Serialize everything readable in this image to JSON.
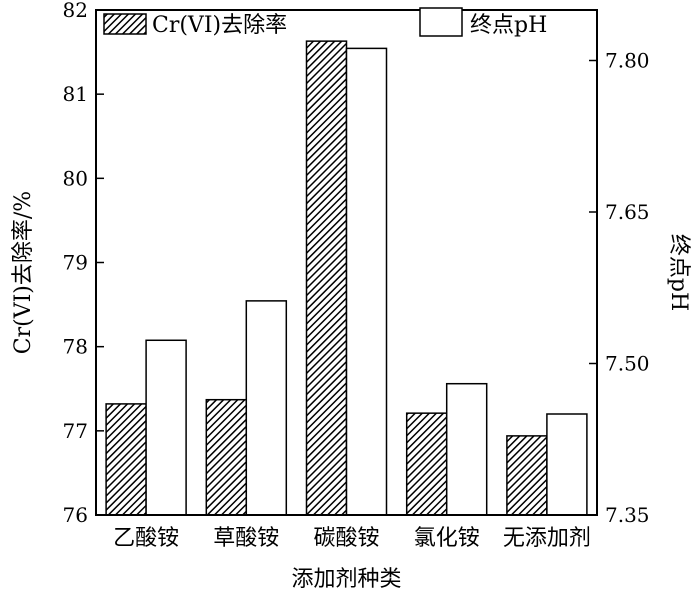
{
  "chart_data": {
    "type": "bar",
    "xlabel": "添加剂种类",
    "categories": [
      "乙酸铵",
      "草酸铵",
      "碳酸铵",
      "氯化铵",
      "无添加剂"
    ],
    "left_axis": {
      "label": "Cr(VI)去除率/%",
      "ylim": [
        76,
        82
      ],
      "ticks": [
        "76",
        "77",
        "78",
        "79",
        "80",
        "81",
        "82"
      ]
    },
    "right_axis": {
      "label": "终点pH",
      "ylim": [
        7.35,
        7.85
      ],
      "ticks": [
        "7.35",
        "7.50",
        "7.65",
        "7.80"
      ]
    },
    "series": [
      {
        "name": "Cr(VI)去除率",
        "axis": "left",
        "fill": "hatched",
        "values": [
          77.32,
          77.37,
          81.63,
          77.21,
          76.94
        ]
      },
      {
        "name": "终点pH",
        "axis": "right",
        "fill": "white",
        "values": [
          7.523,
          7.562,
          7.812,
          7.48,
          7.45
        ]
      }
    ],
    "legend_position": "top",
    "grid": false
  },
  "colors": {
    "axis": "#000000",
    "bar_outline": "#000000",
    "open_bar_fill": "#ffffff",
    "hatch": "#000000"
  }
}
